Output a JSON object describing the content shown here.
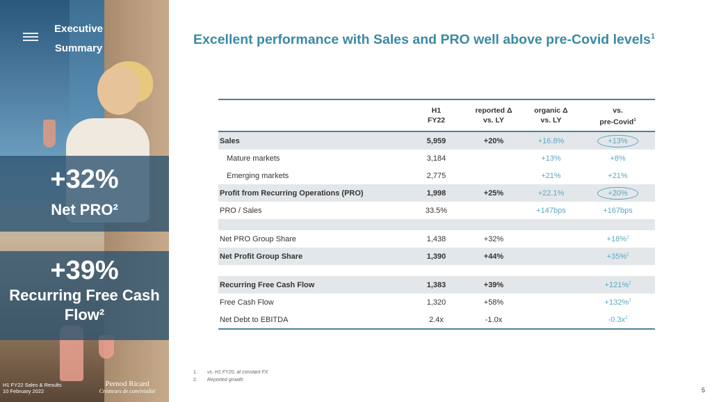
{
  "sidebar": {
    "header_line1": "Executive",
    "header_line2": "Summary",
    "kpi1": {
      "value": "+32%",
      "label": "Net PRO²"
    },
    "kpi2": {
      "value": "+39%",
      "label_line1": "Recurring Free Cash",
      "label_line2": "Flow²"
    },
    "footer_line1": "H1 FY22 Sales & Results",
    "footer_line2": "10 February 2022",
    "brand_name": "Pernod Ricard",
    "brand_tag": "Créateurs de convivialité"
  },
  "title": {
    "text": "Excellent performance with Sales and PRO well above pre-Covid levels",
    "sup": "1"
  },
  "table": {
    "headers": {
      "col1_l1": "H1",
      "col1_l2": "FY22",
      "col2_l1": "reported Δ",
      "col2_l2": "vs. LY",
      "col3_l1": "organic Δ",
      "col3_l2": "vs. LY",
      "col4_l1": "vs.",
      "col4_l2": "pre-Covid",
      "col4_sup": "1"
    },
    "rows": [
      {
        "label": "Sales",
        "h1": "5,959",
        "rep": "+20%",
        "org": "+16.8%",
        "pre": "+13%",
        "sup": ""
      },
      {
        "label": "Mature markets",
        "h1": "3,184",
        "rep": "",
        "org": "+13%",
        "pre": "+8%",
        "sup": ""
      },
      {
        "label": "Emerging markets",
        "h1": "2,775",
        "rep": "",
        "org": "+21%",
        "pre": "+21%",
        "sup": ""
      },
      {
        "label": "Profit from Recurring Operations (PRO)",
        "h1": "1,998",
        "rep": "+25%",
        "org": "+22.1%",
        "pre": "+20%",
        "sup": ""
      },
      {
        "label": "PRO / Sales",
        "h1": "33.5%",
        "rep": "",
        "org": "+147bps",
        "pre": "+167bps",
        "sup": ""
      },
      {
        "label": "Net PRO Group Share",
        "h1": "1,438",
        "rep": "+32%",
        "org": "",
        "pre": "+18%",
        "sup": "2"
      },
      {
        "label": "Net Profit Group Share",
        "h1": "1,390",
        "rep": "+44%",
        "org": "",
        "pre": "+35%",
        "sup": "2"
      },
      {
        "label": "Recurring Free Cash Flow",
        "h1": "1,383",
        "rep": "+39%",
        "org": "",
        "pre": "+121%",
        "sup": "2"
      },
      {
        "label": "Free Cash Flow",
        "h1": "1,320",
        "rep": "+58%",
        "org": "",
        "pre": "+132%",
        "sup": "2"
      },
      {
        "label": "Net Debt to EBITDA",
        "h1": "2.4x",
        "rep": "-1.0x",
        "org": "",
        "pre": "-0.3x",
        "sup": "2"
      }
    ]
  },
  "notes": {
    "n1_num": "1.",
    "n1": "vs. H1 FY20, at constant FX",
    "n2_num": "2.",
    "n2": "Reported growth"
  },
  "page_number": "5"
}
